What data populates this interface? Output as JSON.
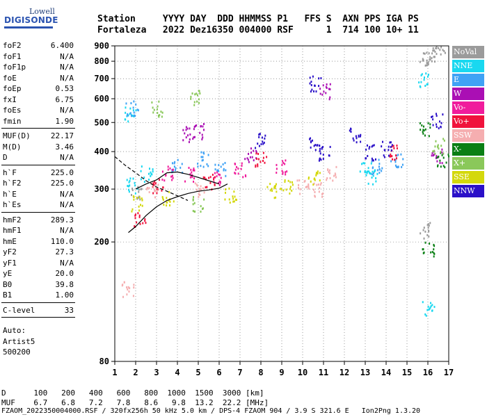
{
  "logo": {
    "line1": "Lowell",
    "line2": "DIGISONDE"
  },
  "header": {
    "labels": [
      "Station",
      "YYYY",
      "DAY",
      "DDD",
      "HHMMSS",
      "P1",
      "FFS",
      "S",
      "AXN",
      "PPS",
      "IGA",
      "PS"
    ],
    "values": [
      "Fortaleza",
      "2022",
      "Dez16",
      "350",
      "004000",
      "RSF",
      "",
      "1",
      "714",
      "100",
      "10+",
      "11"
    ]
  },
  "params": [
    [
      {
        "name": "foF2",
        "value": "6.400"
      },
      {
        "name": "foF1",
        "value": "N/A"
      },
      {
        "name": "foF1p",
        "value": "N/A"
      },
      {
        "name": "foE",
        "value": "N/A"
      },
      {
        "name": "foEp",
        "value": "0.53"
      },
      {
        "name": "fxI",
        "value": "6.75"
      },
      {
        "name": "foEs",
        "value": "N/A"
      },
      {
        "name": "fmin",
        "value": "1.90"
      }
    ],
    [
      {
        "name": "MUF(D)",
        "value": "22.17"
      },
      {
        "name": "M(D)",
        "value": "3.46"
      },
      {
        "name": "D",
        "value": "N/A"
      }
    ],
    [
      {
        "name": "h`F",
        "value": "225.0"
      },
      {
        "name": "h`F2",
        "value": "225.0"
      },
      {
        "name": "h`E",
        "value": "N/A"
      },
      {
        "name": "h`Es",
        "value": "N/A"
      }
    ],
    [
      {
        "name": "hmF2",
        "value": "289.3"
      },
      {
        "name": "hmF1",
        "value": "N/A"
      },
      {
        "name": "hmE",
        "value": "110.0"
      },
      {
        "name": "yF2",
        "value": "27.3"
      },
      {
        "name": "yF1",
        "value": "N/A"
      },
      {
        "name": "yE",
        "value": "20.0"
      },
      {
        "name": "B0",
        "value": "39.8"
      },
      {
        "name": "B1",
        "value": "1.00"
      }
    ],
    [
      {
        "name": "C-level",
        "value": "33"
      }
    ]
  ],
  "notes": [
    "Auto:",
    "Artist5",
    "500200"
  ],
  "legend": [
    {
      "label": "NoVal",
      "color": "#9b9b9b"
    },
    {
      "label": "NNE",
      "color": "#19d8f0"
    },
    {
      "label": "E",
      "color": "#3fa2f5"
    },
    {
      "label": "W",
      "color": "#aa0fb4"
    },
    {
      "label": "Vo-",
      "color": "#f01c9c"
    },
    {
      "label": "Vo+",
      "color": "#f0123c"
    },
    {
      "label": "SSW",
      "color": "#f5aeb0"
    },
    {
      "label": "X-",
      "color": "#0a7f14"
    },
    {
      "label": "X+",
      "color": "#8ac85a"
    },
    {
      "label": "SSE",
      "color": "#d4d80c"
    },
    {
      "label": "NNW",
      "color": "#2a10c8"
    }
  ],
  "bottom": {
    "d_label": "D",
    "d_values": [
      "100",
      "200",
      "400",
      "600",
      "800",
      "1000",
      "1500",
      "3000"
    ],
    "d_unit": "[km]",
    "muf_label": "MUF",
    "muf_values": [
      "6.7",
      "6.8",
      "7.2",
      "7.8",
      "8.6",
      "9.8",
      "13.2",
      "22.2"
    ],
    "muf_unit": "[MHz]"
  },
  "footer": "FZAOM_2022350004000.RSF / 320fx256h 50 kHz 5.0 km / DPS-4 FZAOM 904 / 3.9 S 321.6 E   Ion2Png 1.3.20",
  "chart_data": {
    "type": "scatter",
    "title": "",
    "xlabel": "",
    "ylabel": "",
    "xlim": [
      1,
      17
    ],
    "ylim": [
      80,
      900
    ],
    "yscale": "log",
    "x_ticks": [
      1,
      2,
      3,
      4,
      5,
      6,
      7,
      8,
      9,
      10,
      11,
      12,
      13,
      14,
      15,
      16,
      17
    ],
    "y_ticks": [
      80,
      200,
      300,
      400,
      500,
      600,
      700,
      800,
      900
    ],
    "grid": true,
    "legend_position": "right",
    "clusters": [
      {
        "name": "NoVal",
        "points": [
          [
            2.0,
            290
          ],
          [
            15.8,
            820
          ],
          [
            16.2,
            855
          ],
          [
            16.5,
            860
          ],
          [
            15.9,
            220
          ]
        ]
      },
      {
        "name": "NNE",
        "points": [
          [
            1.7,
            540
          ],
          [
            1.8,
            310
          ],
          [
            13.0,
            350
          ],
          [
            13.3,
            330
          ],
          [
            15.8,
            700
          ],
          [
            16.0,
            120
          ],
          [
            2.5,
            340
          ]
        ]
      },
      {
        "name": "E",
        "points": [
          [
            1.8,
            560
          ],
          [
            4.0,
            360
          ],
          [
            5.2,
            380
          ],
          [
            6.0,
            350
          ],
          [
            13.5,
            360
          ],
          [
            14.5,
            380
          ]
        ]
      },
      {
        "name": "W",
        "points": [
          [
            4.5,
            460
          ],
          [
            5.0,
            470
          ],
          [
            7.5,
            390
          ],
          [
            11.0,
            640
          ],
          [
            16.4,
            390
          ]
        ]
      },
      {
        "name": "Vo-",
        "points": [
          [
            3.5,
            340
          ],
          [
            4.5,
            340
          ],
          [
            6.0,
            330
          ],
          [
            7.0,
            350
          ],
          [
            9.0,
            360
          ]
        ]
      },
      {
        "name": "Vo+",
        "points": [
          [
            2.2,
            240
          ],
          [
            3.0,
            310
          ],
          [
            5.5,
            320
          ],
          [
            8.0,
            380
          ],
          [
            14.2,
            400
          ]
        ]
      },
      {
        "name": "SSW",
        "points": [
          [
            1.6,
            140
          ],
          [
            2.8,
            300
          ],
          [
            5.0,
            300
          ],
          [
            10.0,
            310
          ],
          [
            10.8,
            300
          ],
          [
            11.3,
            340
          ]
        ]
      },
      {
        "name": "X-",
        "points": [
          [
            15.8,
            480
          ],
          [
            16.0,
            190
          ],
          [
            16.7,
            380
          ]
        ]
      },
      {
        "name": "X+",
        "points": [
          [
            3.0,
            560
          ],
          [
            4.8,
            610
          ],
          [
            5.0,
            270
          ],
          [
            16.5,
            420
          ]
        ]
      },
      {
        "name": "SSE",
        "points": [
          [
            2.0,
            270
          ],
          [
            3.5,
            280
          ],
          [
            6.5,
            290
          ],
          [
            8.5,
            300
          ],
          [
            9.2,
            310
          ],
          [
            10.5,
            330
          ]
        ]
      },
      {
        "name": "NNW",
        "points": [
          [
            8.0,
            440
          ],
          [
            10.5,
            430
          ],
          [
            11.0,
            400
          ],
          [
            12.5,
            460
          ],
          [
            13.2,
            400
          ],
          [
            14.0,
            410
          ],
          [
            16.4,
            510
          ],
          [
            10.6,
            680
          ]
        ]
      }
    ],
    "profile_curves": [
      {
        "name": "h'F trace",
        "points": [
          [
            1.65,
            215
          ],
          [
            2.0,
            225
          ],
          [
            2.5,
            245
          ],
          [
            3.0,
            262
          ],
          [
            3.5,
            275
          ],
          [
            4.0,
            283
          ],
          [
            4.5,
            290
          ],
          [
            5.0,
            295
          ],
          [
            5.5,
            298
          ],
          [
            6.0,
            302
          ],
          [
            6.4,
            312
          ]
        ]
      },
      {
        "name": "second trace",
        "points": [
          [
            2.0,
            300
          ],
          [
            2.5,
            312
          ],
          [
            3.0,
            322
          ],
          [
            3.5,
            340
          ],
          [
            4.0,
            342
          ],
          [
            4.5,
            336
          ],
          [
            5.0,
            328
          ],
          [
            5.5,
            320
          ],
          [
            6.0,
            312
          ]
        ]
      },
      {
        "name": "dashed profile",
        "points": [
          [
            1.0,
            385
          ],
          [
            1.5,
            360
          ],
          [
            2.0,
            340
          ],
          [
            2.5,
            320
          ],
          [
            3.0,
            305
          ],
          [
            3.5,
            295
          ],
          [
            4.0,
            285
          ],
          [
            4.5,
            275
          ]
        ]
      }
    ]
  }
}
